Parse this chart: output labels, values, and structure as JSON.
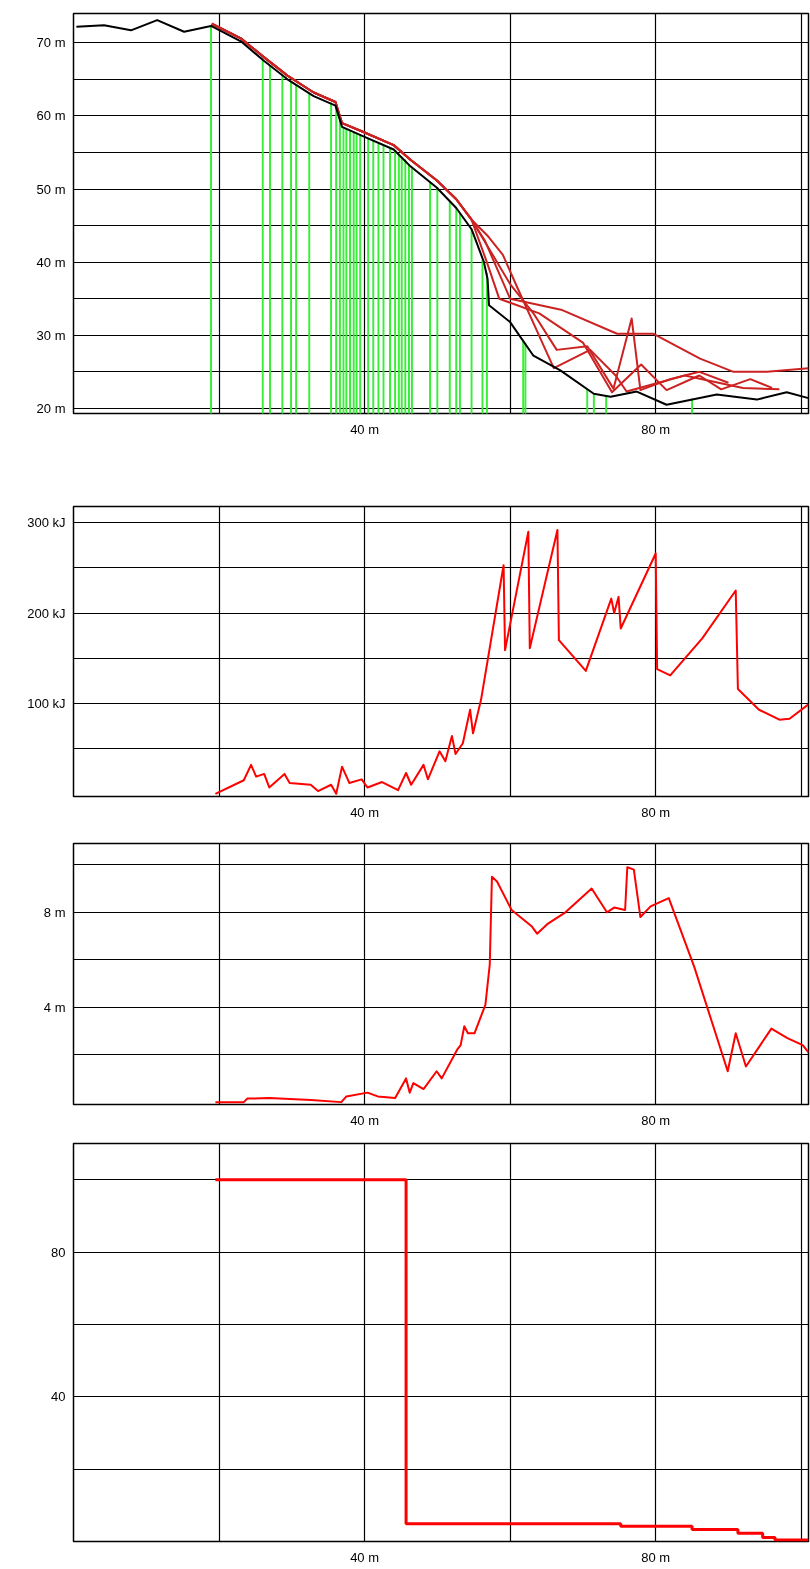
{
  "chart_data": [
    {
      "type": "line",
      "xlim": [
        0,
        101
      ],
      "ylim": [
        19.3,
        74
      ],
      "grid": true,
      "xticks": [
        {
          "value": 20,
          "label": null
        },
        {
          "value": 40,
          "label": "40 m"
        },
        {
          "value": 60,
          "label": null
        },
        {
          "value": 80,
          "label": "80 m"
        },
        {
          "value": 100,
          "label": null
        }
      ],
      "yticks": [
        {
          "value": 20,
          "label": "20 m"
        },
        {
          "value": 25,
          "label": null
        },
        {
          "value": 30,
          "label": "30 m"
        },
        {
          "value": 35,
          "label": null
        },
        {
          "value": 40,
          "label": "40 m"
        },
        {
          "value": 45,
          "label": null
        },
        {
          "value": 50,
          "label": "50 m"
        },
        {
          "value": 55,
          "label": null
        },
        {
          "value": 60,
          "label": "60 m"
        },
        {
          "value": 65,
          "label": null
        },
        {
          "value": 70,
          "label": "70 m"
        }
      ],
      "series": [
        {
          "type": "bar",
          "color": "#33ee33",
          "x": [
            18.9,
            26.0,
            27.0,
            28.7,
            29.9,
            30.6,
            32.4,
            35.4,
            36.1,
            36.6,
            37.1,
            37.5,
            38.0,
            38.5,
            38.9,
            39.4,
            40.5,
            41.2,
            41.9,
            42.6,
            43.5,
            44.2,
            44.7,
            45.1,
            45.6,
            46.1,
            46.5,
            49.0,
            50.0,
            51.7,
            52.6,
            53.1,
            54.7,
            56.2,
            56.8,
            61.8,
            62.1,
            70.6,
            71.5,
            73.2,
            85.0
          ],
          "values": [
            72.3,
            67.6,
            66.9,
            65.6,
            64.7,
            64.2,
            63.1,
            61.8,
            61.3,
            59.5,
            58.4,
            58.2,
            58.0,
            57.8,
            57.6,
            57.4,
            56.9,
            56.6,
            56.3,
            56.0,
            55.6,
            55.2,
            54.8,
            54.4,
            54.0,
            53.3,
            52.9,
            50.9,
            50.1,
            48.3,
            47.4,
            46.6,
            44.5,
            40.3,
            38.5,
            29.3,
            28.9,
            22.6,
            22.0,
            21.7,
            21.3
          ]
        },
        {
          "type": "line",
          "color": "#cc2222",
          "x": [
            19,
            23,
            26.2,
            29.4,
            33,
            36,
            36.9,
            39.6,
            44,
            46.3,
            49.9,
            52.6,
            54.7,
            57,
            60,
            63.2,
            66.4,
            70.6,
            74.2,
            76.7,
            77.9,
            82,
            86,
            90
          ],
          "values": [
            72.6,
            70.6,
            68.0,
            65.5,
            63.2,
            61.9,
            59.0,
            57.9,
            56.0,
            54.0,
            51.2,
            48.6,
            45.8,
            42,
            37,
            33,
            28,
            28.5,
            22.7,
            32.3,
            22.5,
            24,
            25,
            23.5
          ]
        },
        {
          "type": "line",
          "color": "#cc2222",
          "x": [
            19,
            23,
            26.2,
            29.4,
            33,
            36,
            36.9,
            39.6,
            44,
            46.3,
            49.9,
            52.6,
            54.7,
            56.5,
            60,
            67,
            74.7,
            79.7,
            86.1,
            90.7,
            95.3,
            101
          ],
          "values": [
            72.6,
            70.6,
            68.0,
            65.5,
            63.2,
            61.9,
            59.0,
            57.9,
            56.0,
            54.0,
            51.2,
            48.6,
            45.8,
            43,
            35,
            33.5,
            30.2,
            30.2,
            26.8,
            25.0,
            25.0,
            25.5
          ]
        },
        {
          "type": "line",
          "color": "#cc2222",
          "x": [
            19,
            23,
            26.2,
            29.4,
            33,
            36,
            36.9,
            39.6,
            44,
            46.3,
            49.9,
            52.6,
            54.7,
            56.8,
            58.5,
            64,
            70,
            74,
            78,
            81.5,
            86,
            89,
            93,
            96
          ],
          "values": [
            72.6,
            70.6,
            68.0,
            65.5,
            63.2,
            61.9,
            59.0,
            57.9,
            56.0,
            54.0,
            51.2,
            48.6,
            45.8,
            40,
            35,
            33,
            29,
            22.2,
            26,
            22.5,
            24.5,
            22.6,
            24,
            22.8
          ]
        },
        {
          "type": "line",
          "color": "#cc2222",
          "x": [
            19,
            23,
            26.2,
            29.4,
            33,
            36,
            36.9,
            39.6,
            44,
            46.3,
            49.9,
            52.6,
            54.7,
            57,
            59,
            61,
            63.5,
            66,
            71,
            74.5,
            76,
            84,
            92,
            97
          ],
          "values": [
            72.6,
            70.6,
            68.0,
            65.5,
            63.2,
            61.9,
            59.0,
            57.9,
            56.0,
            54.0,
            51.2,
            48.6,
            45.8,
            43.5,
            41,
            36.5,
            31,
            25.5,
            28,
            24.5,
            22.3,
            24.5,
            22.8,
            22.6
          ]
        },
        {
          "type": "line",
          "color": "#000000",
          "x": [
            0.4,
            4.2,
            7.9,
            11.5,
            15.2,
            18.9,
            23.0,
            26.2,
            29.4,
            33.0,
            36.0,
            36.9,
            39.6,
            44.0,
            46.3,
            49.9,
            52.6,
            54.7,
            56.4,
            56.9,
            57.1,
            60.0,
            63.2,
            66.9,
            71.5,
            73.8,
            77.4,
            81.5,
            88.4,
            93.9,
            98.0,
            101
          ],
          "values": [
            72.2,
            72.4,
            71.7,
            73.1,
            71.5,
            72.3,
            70.2,
            67.5,
            65.0,
            62.7,
            61.4,
            58.5,
            57.3,
            55.4,
            53.1,
            50.2,
            47.4,
            44.5,
            40.0,
            37.7,
            34.1,
            31.8,
            27.2,
            25.2,
            22.0,
            21.6,
            22.3,
            20.5,
            21.9,
            21.2,
            22.2,
            21.4
          ]
        }
      ]
    },
    {
      "type": "line",
      "xlim": [
        0,
        101
      ],
      "ylim": [
        -3,
        318
      ],
      "grid": true,
      "xticks": [
        {
          "value": 20,
          "label": null
        },
        {
          "value": 40,
          "label": "40 m"
        },
        {
          "value": 60,
          "label": null
        },
        {
          "value": 80,
          "label": "80 m"
        },
        {
          "value": 100,
          "label": null
        }
      ],
      "yticks": [
        {
          "value": 50,
          "label": null
        },
        {
          "value": 100,
          "label": "100 kJ"
        },
        {
          "value": 150,
          "label": null
        },
        {
          "value": 200,
          "label": "200 kJ"
        },
        {
          "value": 250,
          "label": null
        },
        {
          "value": 300,
          "label": "300 kJ"
        }
      ],
      "series": [
        {
          "color": "#ff0000",
          "x": [
            19.5,
            23.4,
            24.4,
            25.1,
            26.2,
            26.9,
            29.0,
            29.7,
            32.6,
            33.6,
            35.4,
            36.1,
            36.9,
            37.9,
            39.6,
            40.4,
            42.4,
            44.6,
            45.7,
            46.4,
            48.1,
            48.7,
            50.3,
            51.1,
            52.0,
            52.5,
            53.5,
            54.5,
            54.9,
            56.0,
            59.1,
            59.3,
            62.5,
            62.7,
            66.5,
            66.7,
            70.4,
            73.9,
            74.3,
            74.9,
            75.2,
            80.0,
            80.2,
            82.0,
            86.4,
            91.0,
            91.3,
            94.2,
            97.0,
            98.4,
            101
          ],
          "values": [
            0,
            15,
            32,
            19,
            22,
            7,
            22,
            12,
            10,
            3,
            10,
            0,
            30,
            12,
            16,
            7,
            13,
            4,
            23,
            10,
            32,
            16,
            47,
            36,
            64,
            44,
            56,
            93,
            67,
            104,
            253,
            159,
            290,
            161,
            292,
            170,
            136,
            216,
            200,
            218,
            183,
            266,
            138,
            131,
            172,
            225,
            116,
            93,
            82,
            83,
            99
          ]
        }
      ]
    },
    {
      "type": "line",
      "xlim": [
        0,
        101
      ],
      "ylim": [
        -0.1,
        10.9
      ],
      "grid": true,
      "xticks": [
        {
          "value": 20,
          "label": null
        },
        {
          "value": 40,
          "label": "40 m"
        },
        {
          "value": 60,
          "label": null
        },
        {
          "value": 80,
          "label": "80 m"
        },
        {
          "value": 100,
          "label": null
        }
      ],
      "yticks": [
        {
          "value": 2,
          "label": null
        },
        {
          "value": 4,
          "label": "4 m"
        },
        {
          "value": 6,
          "label": null
        },
        {
          "value": 8,
          "label": "8 m"
        },
        {
          "value": 10,
          "label": null
        }
      ],
      "series": [
        {
          "color": "#ff0000",
          "x": [
            19.5,
            23.4,
            23.9,
            26.9,
            32.6,
            36.8,
            37.5,
            40.4,
            41.8,
            44.2,
            45.7,
            46.2,
            46.7,
            48.1,
            49.9,
            50.6,
            52.7,
            53.2,
            53.7,
            54.2,
            55.1,
            56.6,
            57.2,
            57.5,
            58.2,
            60.2,
            63.0,
            63.7,
            65.1,
            67.6,
            71.2,
            73.3,
            74.3,
            75.8,
            76.1,
            77.0,
            77.9,
            79.3,
            81.8,
            85.3,
            89.9,
            91.0,
            92.4,
            95.9,
            98.1,
            100.2,
            101
          ],
          "values": [
            0,
            0,
            0.15,
            0.17,
            0.09,
            0,
            0.24,
            0.4,
            0.24,
            0.17,
            1.0,
            0.4,
            0.8,
            0.55,
            1.3,
            1.0,
            2.2,
            2.4,
            3.2,
            2.9,
            2.9,
            4.1,
            5.8,
            9.5,
            9.3,
            8.1,
            7.4,
            7.1,
            7.5,
            8.0,
            9.0,
            8.0,
            8.2,
            8.1,
            9.9,
            9.8,
            7.8,
            8.25,
            8.6,
            5.7,
            1.3,
            2.9,
            1.5,
            3.1,
            2.7,
            2.4,
            2.1
          ]
        }
      ]
    },
    {
      "type": "step",
      "xlim": [
        0,
        101
      ],
      "ylim": [
        0,
        110
      ],
      "grid": true,
      "xticks": [
        {
          "value": 20,
          "label": null
        },
        {
          "value": 40,
          "label": "40 m"
        },
        {
          "value": 60,
          "label": null
        },
        {
          "value": 80,
          "label": "80 m"
        },
        {
          "value": 100,
          "label": null
        }
      ],
      "yticks": [
        {
          "value": 20,
          "label": null
        },
        40,
        {
          "value": 60,
          "label": null
        },
        80,
        {
          "value": 100,
          "label": null
        }
      ],
      "series": [
        {
          "color": "#ff0000",
          "x": [
            19.5,
            45.7,
            75.2,
            85.0,
            91.3,
            94.7,
            96.4,
            101
          ],
          "values": [
            100,
            4.9,
            4.2,
            3.3,
            2.3,
            1.1,
            0.4,
            0.4
          ]
        }
      ]
    }
  ]
}
